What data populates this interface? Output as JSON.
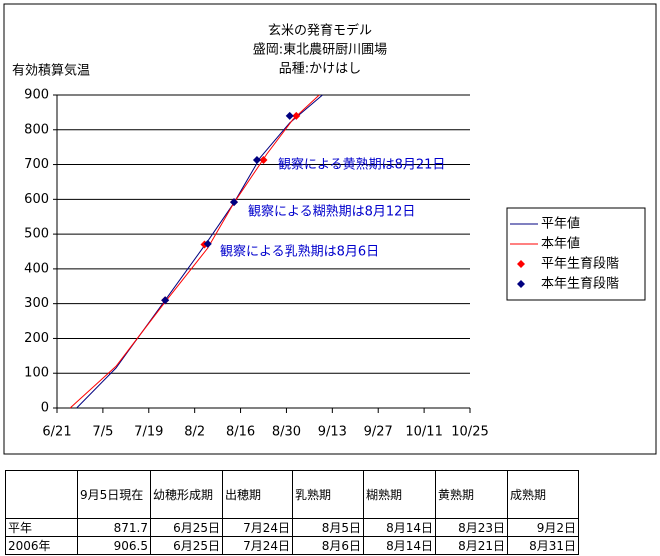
{
  "chart_data": {
    "type": "line",
    "title": [
      "玄米の発育モデル",
      "盛岡:東北農研厨川圃場",
      "品種:かけはし"
    ],
    "y_label": "有効積算気温",
    "xlim": [
      172,
      298
    ],
    "xticks": [
      {
        "value": 172,
        "label": "6/21"
      },
      {
        "value": 186,
        "label": "7/5"
      },
      {
        "value": 200,
        "label": "7/19"
      },
      {
        "value": 214,
        "label": "8/2"
      },
      {
        "value": 228,
        "label": "8/16"
      },
      {
        "value": 242,
        "label": "8/30"
      },
      {
        "value": 256,
        "label": "9/13"
      },
      {
        "value": 270,
        "label": "9/27"
      },
      {
        "value": 284,
        "label": "10/11"
      },
      {
        "value": 298,
        "label": "10/25"
      }
    ],
    "ylim": [
      0,
      900
    ],
    "yticks": [
      0,
      100,
      200,
      300,
      400,
      500,
      600,
      700,
      800,
      900
    ],
    "grid": true,
    "series": [
      {
        "name": "平年値",
        "color": "#000080",
        "x": [
          178,
          190,
          205,
          218,
          226,
          234,
          243,
          253
        ],
        "values": [
          0,
          115,
          310,
          480,
          590,
          720,
          820,
          900
        ]
      },
      {
        "name": "本年値",
        "color": "#ff0000",
        "x": [
          176,
          190,
          205,
          218,
          226,
          236,
          244,
          252
        ],
        "values": [
          0,
          120,
          305,
          460,
          590,
          730,
          830,
          900
        ]
      },
      {
        "name": "平年生育段階",
        "color": "#ff0000",
        "marker": "diamond",
        "x": [
          205,
          217,
          226,
          235,
          245
        ],
        "values": [
          310,
          470,
          592,
          713,
          840
        ]
      },
      {
        "name": "本年生育段階",
        "color": "#000080",
        "marker": "diamond",
        "x": [
          205,
          218,
          226,
          233,
          243
        ],
        "values": [
          310,
          472,
          592,
          713,
          840
        ]
      }
    ],
    "annotations": [
      "観察による黄熟期は8月21日",
      "観察による糊熟期は8月12日",
      "観察による乳熟期は8月6日"
    ]
  },
  "table": {
    "header": [
      "",
      "9月5日現在",
      "幼穂形成期",
      "出穂期",
      "乳熟期",
      "糊熟期",
      "黄熟期",
      "成熟期"
    ],
    "rows": [
      [
        "平年",
        "871.7",
        "6月25日",
        "7月24日",
        "8月5日",
        "8月14日",
        "8月23日",
        "9月2日"
      ],
      [
        "2006年",
        "906.5",
        "6月25日",
        "7月24日",
        "8月6日",
        "8月14日",
        "8月21日",
        "8月31日"
      ]
    ]
  }
}
